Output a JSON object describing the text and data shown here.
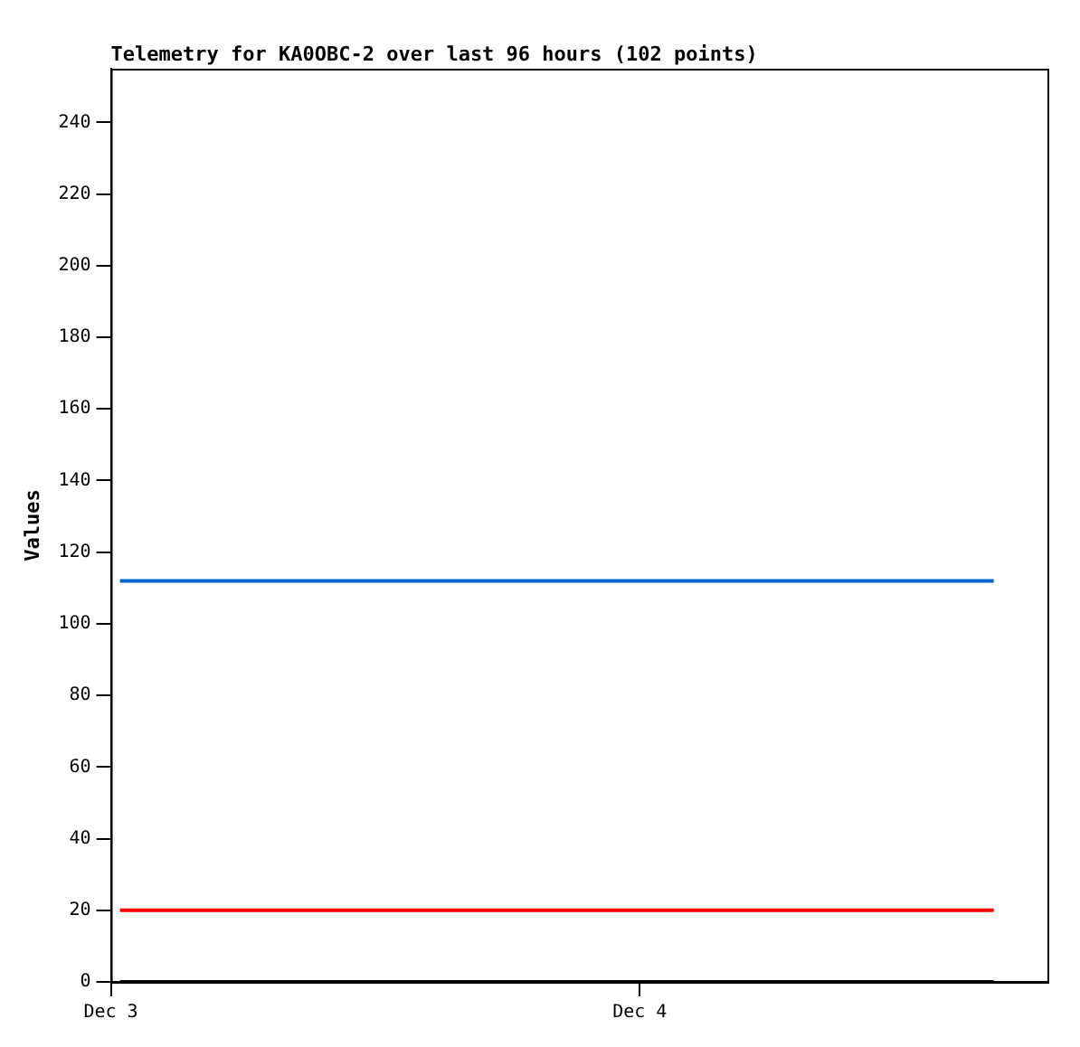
{
  "chart_data": {
    "type": "line",
    "title": "Telemetry for KA0OBC-2 over last 96 hours (102 points)",
    "ylabel": "Values",
    "x": [
      "--12-03T00:25",
      "--12-04T16:04"
    ],
    "series": [
      {
        "color": "#0066cc",
        "values": [
          112,
          112
        ]
      },
      {
        "color": "#ff0000",
        "values": [
          20,
          20
        ]
      },
      {
        "color": "#000000",
        "values": [
          0,
          0
        ]
      }
    ],
    "xlim": [
      "--12-03T00:00",
      "--12-04T18:30"
    ],
    "xticks": [
      {
        "value": "--12-03",
        "label": "Dec 3"
      },
      {
        "value": "--12-04",
        "label": "Dec 4"
      }
    ],
    "ylim": [
      0,
      255
    ],
    "yticks": [
      0,
      20,
      40,
      60,
      80,
      100,
      120,
      140,
      160,
      180,
      200,
      220,
      240
    ],
    "grid": false,
    "legend": false,
    "marker": "none",
    "line_style": "solid"
  }
}
